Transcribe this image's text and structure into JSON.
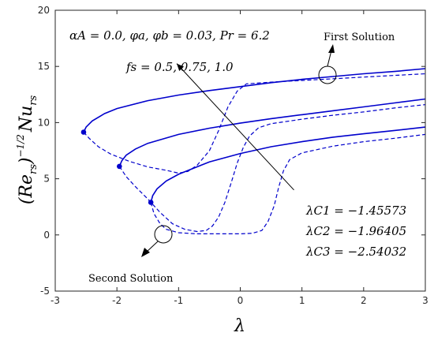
{
  "chart_data": {
    "type": "line",
    "xlabel": "λ",
    "ylabel_base": "(Re",
    "ylabel_sub": "rs",
    "ylabel_exp": "−1/2",
    "ylabel_tail": "Nu",
    "xlim": [
      -3,
      3
    ],
    "ylim": [
      -5,
      20
    ],
    "x_ticks": [
      "-3",
      "-2",
      "-1",
      "0",
      "1",
      "2",
      "3"
    ],
    "y_ticks": [
      "-5",
      "0",
      "5",
      "10",
      "15",
      "20"
    ],
    "grid": false,
    "line_color": "#0000cc",
    "params_text": "αA = 0.0, φa, φb = 0.03, Pr = 6.2",
    "fs_text": "fs = 0.5, 0.75, 1.0",
    "first_solution_label": "First Solution",
    "second_solution_label": "Second Solution",
    "critical_labels": [
      "λC1 = −1.45573",
      "λC2 = −1.96405",
      "λC3 = −2.54032"
    ],
    "critical_points": [
      {
        "x": -2.54,
        "y": 9.15
      },
      {
        "x": -1.96,
        "y": 6.1
      },
      {
        "x": -1.45,
        "y": 2.9
      }
    ],
    "series": [
      {
        "style": "solid",
        "points": [
          [
            -2.54,
            9.15
          ],
          [
            -2.5,
            9.6
          ],
          [
            -2.4,
            10.15
          ],
          [
            -2.2,
            10.8
          ],
          [
            -2.0,
            11.25
          ],
          [
            -1.5,
            11.95
          ],
          [
            -1.0,
            12.45
          ],
          [
            -0.5,
            12.85
          ],
          [
            0,
            13.2
          ],
          [
            0.5,
            13.55
          ],
          [
            1.0,
            13.85
          ],
          [
            1.5,
            14.1
          ],
          [
            2.0,
            14.35
          ],
          [
            2.5,
            14.55
          ],
          [
            3.0,
            14.8
          ]
        ]
      },
      {
        "style": "solid",
        "points": [
          [
            -1.96,
            6.1
          ],
          [
            -1.92,
            6.6
          ],
          [
            -1.85,
            7.1
          ],
          [
            -1.7,
            7.65
          ],
          [
            -1.5,
            8.15
          ],
          [
            -1.0,
            8.95
          ],
          [
            -0.5,
            9.5
          ],
          [
            0,
            9.95
          ],
          [
            0.5,
            10.35
          ],
          [
            1.0,
            10.7
          ],
          [
            1.5,
            11.05
          ],
          [
            2.0,
            11.4
          ],
          [
            2.5,
            11.75
          ],
          [
            3.0,
            12.1
          ]
        ]
      },
      {
        "style": "solid",
        "points": [
          [
            -1.45,
            2.9
          ],
          [
            -1.42,
            3.5
          ],
          [
            -1.35,
            4.1
          ],
          [
            -1.2,
            4.8
          ],
          [
            -1.0,
            5.4
          ],
          [
            -0.5,
            6.5
          ],
          [
            0,
            7.25
          ],
          [
            0.5,
            7.85
          ],
          [
            1.0,
            8.3
          ],
          [
            1.5,
            8.7
          ],
          [
            2.0,
            9.0
          ],
          [
            2.5,
            9.3
          ],
          [
            3.0,
            9.6
          ]
        ]
      },
      {
        "style": "dashed",
        "points": [
          [
            -2.54,
            9.15
          ],
          [
            -2.45,
            8.6
          ],
          [
            -2.3,
            7.85
          ],
          [
            -2.1,
            7.2
          ],
          [
            -1.8,
            6.55
          ],
          [
            -1.5,
            6.05
          ],
          [
            -1.2,
            5.75
          ],
          [
            -1.0,
            5.5
          ],
          [
            -0.85,
            5.65
          ],
          [
            -0.7,
            6.2
          ],
          [
            -0.5,
            7.5
          ],
          [
            -0.35,
            9.3
          ],
          [
            -0.2,
            11.4
          ],
          [
            -0.05,
            12.8
          ],
          [
            0.1,
            13.45
          ],
          [
            0.5,
            13.6
          ],
          [
            1.0,
            13.75
          ],
          [
            1.5,
            13.9
          ],
          [
            2.0,
            14.05
          ],
          [
            2.5,
            14.2
          ],
          [
            3.0,
            14.35
          ]
        ]
      },
      {
        "style": "dashed",
        "points": [
          [
            -1.96,
            6.1
          ],
          [
            -1.85,
            5.2
          ],
          [
            -1.7,
            4.3
          ],
          [
            -1.5,
            3.2
          ],
          [
            -1.3,
            2.0
          ],
          [
            -1.1,
            1.0
          ],
          [
            -0.9,
            0.5
          ],
          [
            -0.7,
            0.3
          ],
          [
            -0.55,
            0.4
          ],
          [
            -0.45,
            0.8
          ],
          [
            -0.35,
            1.6
          ],
          [
            -0.25,
            2.9
          ],
          [
            -0.15,
            4.6
          ],
          [
            -0.05,
            6.4
          ],
          [
            0.05,
            7.8
          ],
          [
            0.15,
            8.8
          ],
          [
            0.3,
            9.55
          ],
          [
            0.5,
            9.9
          ],
          [
            1.0,
            10.3
          ],
          [
            1.5,
            10.65
          ],
          [
            2.0,
            10.95
          ],
          [
            2.5,
            11.3
          ],
          [
            3.0,
            11.6
          ]
        ]
      },
      {
        "style": "dashed",
        "points": [
          [
            -1.45,
            2.9
          ],
          [
            -1.4,
            1.9
          ],
          [
            -1.3,
            1.0
          ],
          [
            -1.2,
            0.5
          ],
          [
            -1.0,
            0.2
          ],
          [
            -0.7,
            0.1
          ],
          [
            -0.3,
            0.1
          ],
          [
            0,
            0.1
          ],
          [
            0.2,
            0.15
          ],
          [
            0.35,
            0.4
          ],
          [
            0.45,
            1.2
          ],
          [
            0.55,
            2.6
          ],
          [
            0.62,
            4.2
          ],
          [
            0.7,
            5.7
          ],
          [
            0.8,
            6.7
          ],
          [
            1.0,
            7.3
          ],
          [
            1.5,
            7.9
          ],
          [
            2.0,
            8.3
          ],
          [
            2.5,
            8.6
          ],
          [
            3.0,
            8.95
          ]
        ]
      }
    ],
    "annotation_arrow": {
      "from": [
        0.87,
        4.0
      ],
      "to": [
        -1.03,
        15.25
      ]
    }
  }
}
